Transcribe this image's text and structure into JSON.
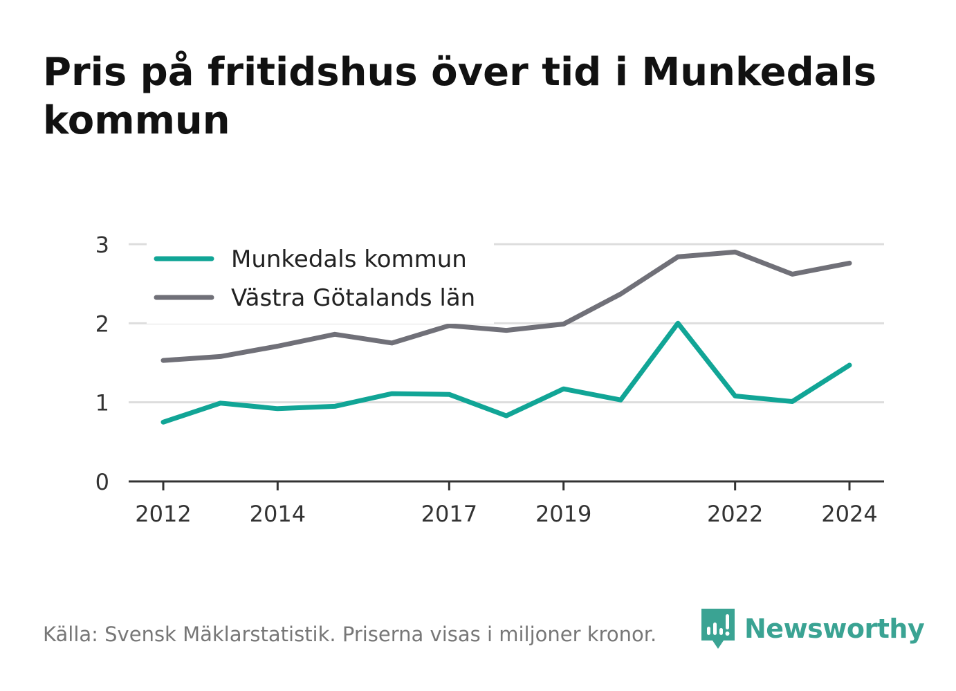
{
  "title": "Pris på fritidshus över tid i Munkedals kommun",
  "footer": "Källa: Svensk Mäklarstatistik. Priserna visas i miljoner kronor.",
  "brand": {
    "name": "Newsworthy",
    "icon": "newsworthy-logo-icon",
    "color": "#3aa393"
  },
  "chart_data": {
    "type": "line",
    "x": [
      2012,
      2013,
      2014,
      2015,
      2016,
      2017,
      2018,
      2019,
      2020,
      2021,
      2022,
      2023,
      2024
    ],
    "x_ticks": [
      "2012",
      "2014",
      "2017",
      "2019",
      "2022",
      "2024"
    ],
    "y_ticks": [
      "0",
      "1",
      "2",
      "3"
    ],
    "ylim": [
      0,
      3
    ],
    "grid": true,
    "legend": "top-left",
    "series": [
      {
        "name": "Munkedals kommun",
        "color": "#11a596",
        "values": [
          0.75,
          0.99,
          0.92,
          0.95,
          1.11,
          1.1,
          0.83,
          1.17,
          1.03,
          2.0,
          1.08,
          1.01,
          1.47
        ]
      },
      {
        "name": "Västra Götalands län",
        "color": "#707078",
        "values": [
          1.53,
          1.58,
          1.71,
          1.86,
          1.75,
          1.97,
          1.91,
          1.99,
          2.37,
          2.84,
          2.9,
          2.62,
          2.76
        ]
      }
    ]
  }
}
